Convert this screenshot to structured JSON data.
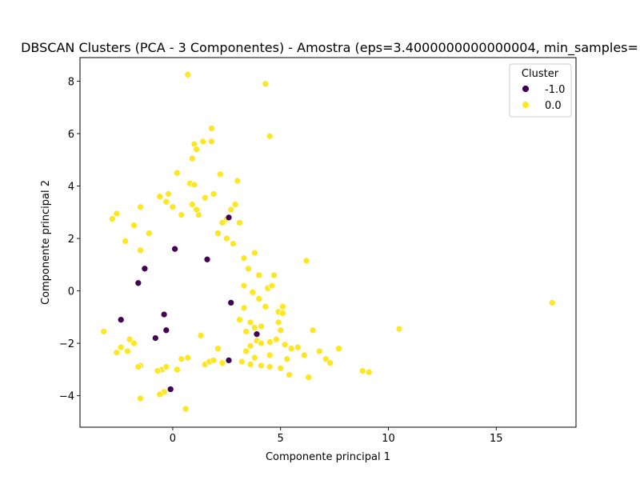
{
  "chart_data": {
    "type": "scatter",
    "title": "DBSCAN Clusters (PCA - 3 Componentes) - Amostra (eps=3.4000000000000004, min_samples=",
    "xlabel": "Componente principal 1",
    "ylabel": "Componente principal 2",
    "xlim": [
      -4.3,
      18.7
    ],
    "ylim": [
      -5.2,
      8.9
    ],
    "xticks": [
      0,
      5,
      10,
      15
    ],
    "yticks": [
      -4,
      -2,
      0,
      2,
      4,
      6,
      8
    ],
    "grid": false,
    "legend": {
      "title": "Cluster",
      "placement": "top-right"
    },
    "series": [
      {
        "name": "-1.0",
        "color": "#440154",
        "points": [
          [
            2.6,
            2.8
          ],
          [
            -1.3,
            0.85
          ],
          [
            1.6,
            1.2
          ],
          [
            -2.4,
            -1.1
          ],
          [
            -0.4,
            -0.9
          ],
          [
            2.7,
            -0.45
          ],
          [
            3.9,
            -1.65
          ],
          [
            2.6,
            -2.65
          ],
          [
            -0.1,
            -3.75
          ],
          [
            -0.8,
            -1.8
          ],
          [
            0.1,
            1.6
          ],
          [
            -1.6,
            0.3
          ],
          [
            -0.3,
            -1.5
          ]
        ]
      },
      {
        "name": "0.0",
        "color": "#fde725",
        "points": [
          [
            0.7,
            8.25
          ],
          [
            4.3,
            7.9
          ],
          [
            4.5,
            5.9
          ],
          [
            1.8,
            6.2
          ],
          [
            1.0,
            5.6
          ],
          [
            1.4,
            5.7
          ],
          [
            1.8,
            5.7
          ],
          [
            1.1,
            5.4
          ],
          [
            0.9,
            5.05
          ],
          [
            0.2,
            4.5
          ],
          [
            2.2,
            4.45
          ],
          [
            0.8,
            4.1
          ],
          [
            1.0,
            4.05
          ],
          [
            3.0,
            4.2
          ],
          [
            -0.6,
            3.6
          ],
          [
            -0.2,
            3.7
          ],
          [
            1.5,
            3.55
          ],
          [
            -0.3,
            3.4
          ],
          [
            1.9,
            3.7
          ],
          [
            -1.5,
            3.2
          ],
          [
            -2.6,
            2.95
          ],
          [
            -2.8,
            2.75
          ],
          [
            2.5,
            2.75
          ],
          [
            3.1,
            2.6
          ],
          [
            1.2,
            2.9
          ],
          [
            -1.8,
            2.5
          ],
          [
            2.7,
            3.1
          ],
          [
            2.9,
            3.3
          ],
          [
            0.9,
            3.3
          ],
          [
            1.1,
            3.1
          ],
          [
            0.4,
            2.9
          ],
          [
            0.0,
            3.2
          ],
          [
            -1.1,
            2.2
          ],
          [
            -1.5,
            1.55
          ],
          [
            -2.2,
            1.9
          ],
          [
            2.3,
            2.6
          ],
          [
            2.5,
            2.0
          ],
          [
            2.1,
            2.2
          ],
          [
            2.8,
            1.8
          ],
          [
            3.3,
            1.25
          ],
          [
            3.8,
            1.45
          ],
          [
            3.5,
            0.85
          ],
          [
            4.0,
            0.6
          ],
          [
            4.7,
            0.6
          ],
          [
            4.4,
            0.1
          ],
          [
            4.6,
            0.2
          ],
          [
            3.3,
            0.2
          ],
          [
            3.7,
            -0.05
          ],
          [
            3.3,
            -0.65
          ],
          [
            4.0,
            -0.3
          ],
          [
            4.3,
            -0.6
          ],
          [
            4.9,
            -0.8
          ],
          [
            5.1,
            -0.6
          ],
          [
            5.1,
            -0.85
          ],
          [
            4.9,
            -1.2
          ],
          [
            3.1,
            -1.1
          ],
          [
            3.6,
            -1.2
          ],
          [
            3.8,
            -1.4
          ],
          [
            4.1,
            -1.35
          ],
          [
            3.4,
            -1.55
          ],
          [
            3.9,
            -1.9
          ],
          [
            3.6,
            -2.1
          ],
          [
            3.4,
            -2.3
          ],
          [
            3.8,
            -2.55
          ],
          [
            4.1,
            -2.0
          ],
          [
            4.5,
            -1.95
          ],
          [
            4.8,
            -1.85
          ],
          [
            4.5,
            -2.45
          ],
          [
            5.2,
            -2.05
          ],
          [
            5.0,
            -1.5
          ],
          [
            5.5,
            -2.2
          ],
          [
            5.8,
            -2.15
          ],
          [
            5.3,
            -2.6
          ],
          [
            5.0,
            -2.95
          ],
          [
            4.5,
            -2.9
          ],
          [
            4.1,
            -2.85
          ],
          [
            3.2,
            -2.7
          ],
          [
            3.6,
            -2.8
          ],
          [
            5.4,
            -3.2
          ],
          [
            6.3,
            -3.3
          ],
          [
            6.5,
            -1.5
          ],
          [
            6.8,
            -2.3
          ],
          [
            7.1,
            -2.6
          ],
          [
            7.3,
            -2.75
          ],
          [
            7.7,
            -2.2
          ],
          [
            6.2,
            1.15
          ],
          [
            6.1,
            -2.45
          ],
          [
            8.8,
            -3.05
          ],
          [
            9.1,
            -3.1
          ],
          [
            10.5,
            -1.45
          ],
          [
            17.6,
            -0.45
          ],
          [
            0.6,
            -4.5
          ],
          [
            -0.4,
            -3.85
          ],
          [
            -0.6,
            -3.95
          ],
          [
            -1.5,
            -4.1
          ],
          [
            -1.5,
            -2.85
          ],
          [
            -1.6,
            -2.9
          ],
          [
            -0.5,
            -3.0
          ],
          [
            -0.3,
            -2.9
          ],
          [
            0.2,
            -3.0
          ],
          [
            -0.7,
            -3.05
          ],
          [
            0.4,
            -2.6
          ],
          [
            0.7,
            -2.55
          ],
          [
            1.5,
            -2.8
          ],
          [
            1.7,
            -2.7
          ],
          [
            1.9,
            -2.65
          ],
          [
            2.3,
            -2.75
          ],
          [
            2.1,
            -2.2
          ],
          [
            -2.6,
            -2.35
          ],
          [
            -2.4,
            -2.15
          ],
          [
            -2.1,
            -2.3
          ],
          [
            -1.8,
            -2.0
          ],
          [
            -2.0,
            -1.85
          ],
          [
            1.3,
            -1.7
          ],
          [
            -3.2,
            -1.55
          ]
        ]
      }
    ]
  }
}
